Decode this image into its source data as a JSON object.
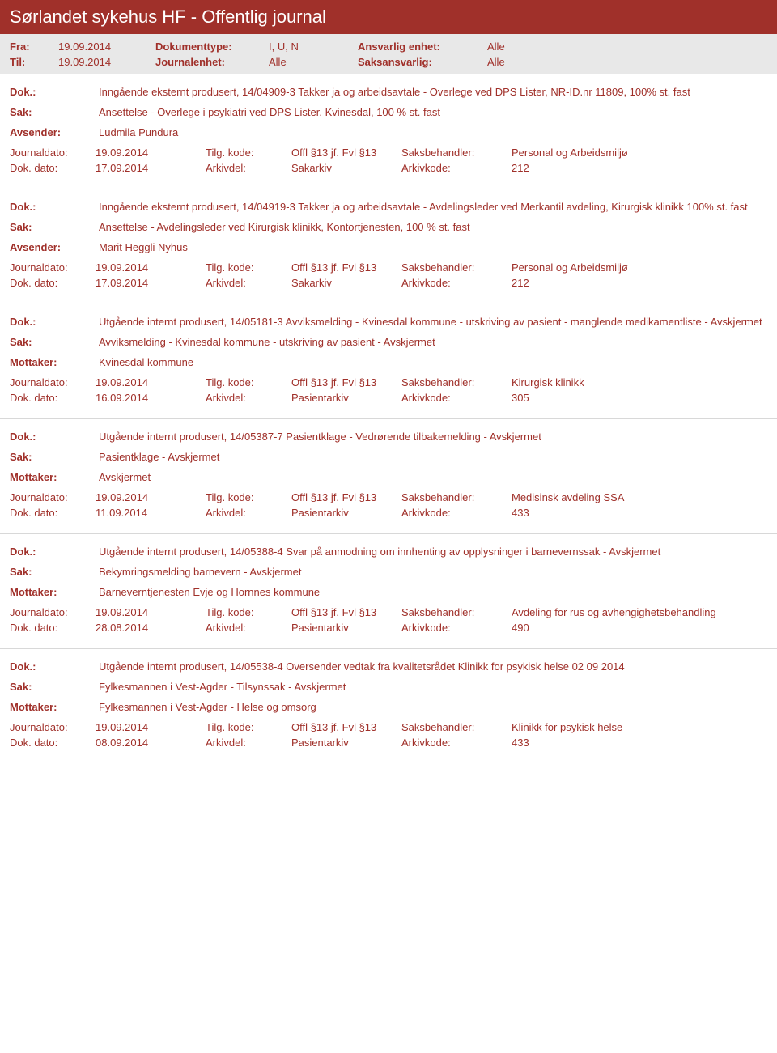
{
  "colors": {
    "header_bg": "#a0302a",
    "header_text": "#ffffff",
    "filter_bg": "#e8e8e8",
    "body_text": "#a0302a",
    "divider": "#d8d8d8"
  },
  "typography": {
    "title_fontsize": 22,
    "body_fontsize": 13,
    "font_family": "Segoe UI"
  },
  "header": {
    "title": "Sørlandet sykehus HF - Offentlig journal"
  },
  "filter": {
    "fra_label": "Fra:",
    "fra_value": "19.09.2014",
    "til_label": "Til:",
    "til_value": "19.09.2014",
    "dokumenttype_label": "Dokumenttype:",
    "dokumenttype_value": "I, U, N",
    "journalenhet_label": "Journalenhet:",
    "journalenhet_value": "Alle",
    "ansvarlig_label": "Ansvarlig enhet:",
    "ansvarlig_value": "Alle",
    "saksansvarlig_label": "Saksansvarlig:",
    "saksansvarlig_value": "Alle"
  },
  "labels": {
    "dok": "Dok.:",
    "sak": "Sak:",
    "avsender": "Avsender:",
    "mottaker": "Mottaker:",
    "journaldato": "Journaldato:",
    "tilg_kode": "Tilg. kode:",
    "saksbehandler": "Saksbehandler:",
    "dok_dato": "Dok. dato:",
    "arkivdel": "Arkivdel:",
    "arkivkode": "Arkivkode:"
  },
  "entries": [
    {
      "dok": "Inngående eksternt produsert, 14/04909-3 Takker ja og arbeidsavtale - Overlege ved DPS Lister, NR-ID.nr 11809, 100% st. fast",
      "sak": "Ansettelse - Overlege i psykiatri ved DPS Lister, Kvinesdal, 100 % st. fast",
      "party_label": "Avsender:",
      "party_value": "Ludmila Pundura",
      "journaldato": "19.09.2014",
      "tilg_kode": "Offl §13 jf. Fvl §13",
      "saksbehandler": "Personal og Arbeidsmiljø",
      "dok_dato": "17.09.2014",
      "arkivdel": "Sakarkiv",
      "arkivkode": "212"
    },
    {
      "dok": "Inngående eksternt produsert, 14/04919-3 Takker ja og arbeidsavtale - Avdelingsleder ved Merkantil avdeling, Kirurgisk klinikk 100% st. fast",
      "sak": "Ansettelse - Avdelingsleder ved Kirurgisk klinikk, Kontortjenesten, 100 % st. fast",
      "party_label": "Avsender:",
      "party_value": "Marit Heggli Nyhus",
      "journaldato": "19.09.2014",
      "tilg_kode": "Offl §13 jf. Fvl §13",
      "saksbehandler": "Personal og Arbeidsmiljø",
      "dok_dato": "17.09.2014",
      "arkivdel": "Sakarkiv",
      "arkivkode": "212"
    },
    {
      "dok": "Utgående internt produsert, 14/05181-3 Avviksmelding - Kvinesdal kommune - utskriving av pasient - manglende medikamentliste - Avskjermet",
      "sak": "Avviksmelding - Kvinesdal kommune - utskriving av pasient - Avskjermet",
      "party_label": "Mottaker:",
      "party_value": "Kvinesdal kommune",
      "journaldato": "19.09.2014",
      "tilg_kode": "Offl §13 jf. Fvl §13",
      "saksbehandler": "Kirurgisk klinikk",
      "dok_dato": "16.09.2014",
      "arkivdel": "Pasientarkiv",
      "arkivkode": "305"
    },
    {
      "dok": "Utgående internt produsert, 14/05387-7 Pasientklage - Vedrørende tilbakemelding - Avskjermet",
      "sak": "Pasientklage - Avskjermet",
      "party_label": "Mottaker:",
      "party_value": "Avskjermet",
      "journaldato": "19.09.2014",
      "tilg_kode": "Offl §13 jf. Fvl §13",
      "saksbehandler": "Medisinsk avdeling SSA",
      "dok_dato": "11.09.2014",
      "arkivdel": "Pasientarkiv",
      "arkivkode": "433"
    },
    {
      "dok": "Utgående internt produsert, 14/05388-4 Svar på anmodning om innhenting av opplysninger i barnevernssak - Avskjermet",
      "sak": "Bekymringsmelding barnevern - Avskjermet",
      "party_label": "Mottaker:",
      "party_value": "Barneverntjenesten Evje og Hornnes kommune",
      "journaldato": "19.09.2014",
      "tilg_kode": "Offl §13 jf. Fvl §13",
      "saksbehandler": "Avdeling for rus og avhengighetsbehandling",
      "dok_dato": "28.08.2014",
      "arkivdel": "Pasientarkiv",
      "arkivkode": "490"
    },
    {
      "dok": "Utgående internt produsert, 14/05538-4 Oversender vedtak fra kvalitetsrådet  Klinikk for psykisk helse 02 09 2014",
      "sak": "Fylkesmannen i Vest-Agder - Tilsynssak - Avskjermet",
      "party_label": "Mottaker:",
      "party_value": "Fylkesmannen i Vest-Agder - Helse og omsorg",
      "journaldato": "19.09.2014",
      "tilg_kode": "Offl §13 jf. Fvl §13",
      "saksbehandler": "Klinikk for psykisk helse",
      "dok_dato": "08.09.2014",
      "arkivdel": "Pasientarkiv",
      "arkivkode": "433"
    }
  ]
}
